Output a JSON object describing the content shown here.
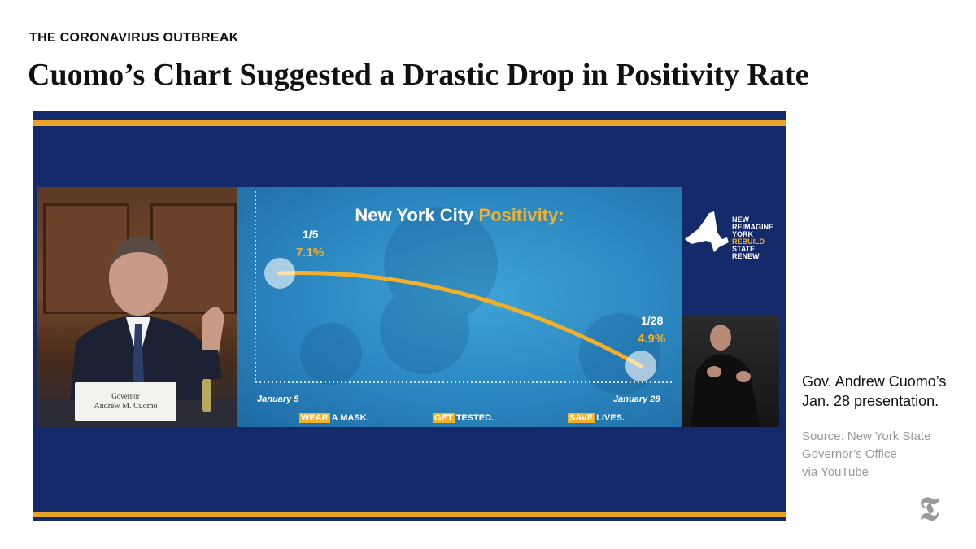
{
  "kicker": "THE CORONAVIRUS OUTBREAK",
  "headline": "Cuomo’s Chart Suggested a Drastic Drop in Positivity Rate",
  "caption": {
    "line1": "Gov. Andrew Cuomo’s",
    "line2": "Jan. 28 presentation."
  },
  "source": {
    "line1": "Source:  New York State",
    "line2": "Governor’s Office",
    "line3": "via YouTube"
  },
  "nameplate": {
    "title": "Governor",
    "name": "Andrew M. Cuomo"
  },
  "slide": {
    "title_main": "New York City",
    "title_accent": "Positivity:",
    "slogans": [
      {
        "highlight": "WEAR",
        "rest": "A MASK."
      },
      {
        "highlight": "GET",
        "rest": "TESTED."
      },
      {
        "highlight": "SAVE",
        "rest": "LIVES."
      }
    ]
  },
  "logo": {
    "words": [
      "NEW",
      "YORK",
      "STATE",
      "REIMAGINE",
      "REBUILD",
      "RENEW"
    ]
  },
  "colors": {
    "accent": "#f2b02a",
    "frame": "#142a6b",
    "stripe": "#e9a224"
  },
  "chart_data": {
    "type": "line",
    "title": "New York City Positivity:",
    "x": [
      "1/5",
      "1/28"
    ],
    "x_axis_labels": [
      "January 5",
      "January 28"
    ],
    "series": [
      {
        "values": [
          7.1,
          4.9
        ]
      }
    ],
    "points": [
      {
        "date": "1/5",
        "label": "7.1%",
        "value": 7.1
      },
      {
        "date": "1/28",
        "label": "4.9%",
        "value": 4.9
      }
    ],
    "grid": false,
    "curve": "concave-down"
  }
}
